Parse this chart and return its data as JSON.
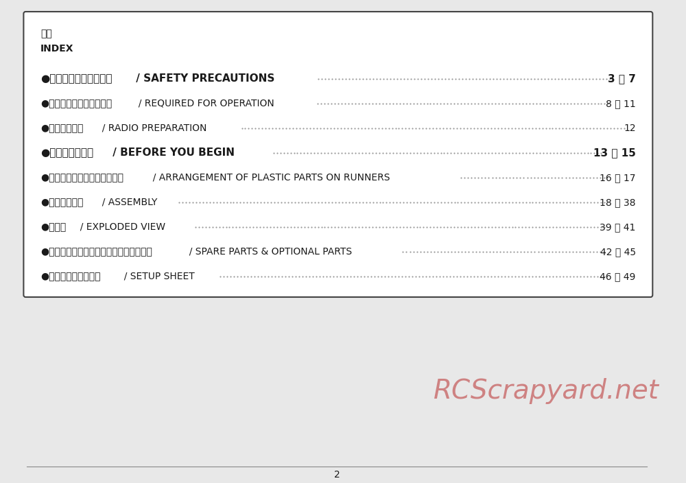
{
  "bg_color": "#e8e8e8",
  "box_bg": "#ffffff",
  "box_border": "#444444",
  "text_color": "#1a1a1a",
  "watermark_color": "#cc7777",
  "page_number": "2",
  "header_jp": "目次",
  "header_en": "INDEX",
  "entries": [
    {
      "jp": "●安全のための注意事項",
      "en": " / SAFETY PRECAUTIONS",
      "pages": "3 ～ 7",
      "bold": true,
      "font_size": 11.0
    },
    {
      "jp": "●キットの他にそろえる物",
      "en": "  / REQUIRED FOR OPERATION",
      "pages": "8 ～ 11",
      "bold": false,
      "font_size": 10.0
    },
    {
      "jp": "●プロポの準備",
      "en": "  / RADIO PREPARATION",
      "pages": "12",
      "bold": false,
      "font_size": 10.0
    },
    {
      "jp": "●組立て前の注意",
      "en": " / BEFORE YOU BEGIN",
      "pages": "13 ～ 15",
      "bold": true,
      "font_size": 11.0
    },
    {
      "jp": "●ランナー付プラパーツ配置図",
      "en": "  / ARRANGEMENT OF PLASTIC PARTS ON RUNNERS",
      "pages": "16 ～ 17",
      "bold": false,
      "font_size": 10.0
    },
    {
      "jp": "●本体の組立て",
      "en": "  / ASSEMBLY",
      "pages": "18 ～ 38",
      "bold": false,
      "font_size": 10.0
    },
    {
      "jp": "●分解図",
      "en": "  / EXPLODED VIEW",
      "pages": "39 ～ 41",
      "bold": false,
      "font_size": 10.0
    },
    {
      "jp": "●スペアパーツ・オプションパーツリスト",
      "en": "  / SPARE PARTS & OPTIONAL PARTS",
      "pages": "42 ～ 45",
      "bold": false,
      "font_size": 10.0
    },
    {
      "jp": "●セットアップシート",
      "en": "  / SETUP SHEET",
      "pages": "46 ～ 49",
      "bold": false,
      "font_size": 10.0
    }
  ],
  "watermark_text": "RCScrapyard.net",
  "watermark_fontsize": 28,
  "dot_color": "#888888"
}
